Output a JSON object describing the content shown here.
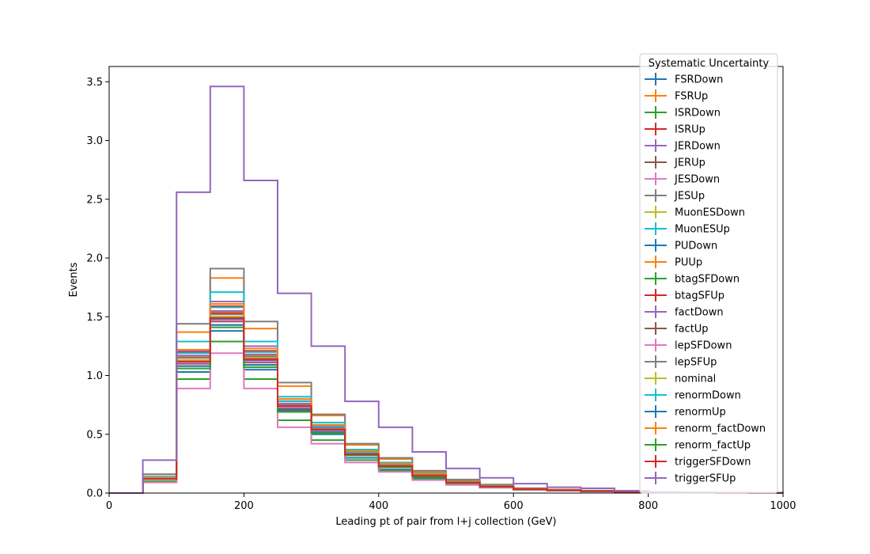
{
  "chart_data": {
    "type": "step-histogram",
    "xlabel": "Leading pt of pair from l+j collection (GeV)",
    "ylabel": "Events",
    "xlim": [
      0,
      1000
    ],
    "ylim": [
      0,
      3.63
    ],
    "xticks": [
      "0",
      "200",
      "400",
      "600",
      "800",
      "1000"
    ],
    "yticks": [
      "0.0",
      "0.5",
      "1.0",
      "1.5",
      "2.0",
      "2.5",
      "3.0",
      "3.5"
    ],
    "grid": false,
    "legend": {
      "title": "Systematic Uncertainty",
      "placement": "top-right"
    },
    "bin_edges": [
      0,
      50,
      100,
      150,
      200,
      250,
      300,
      350,
      400,
      450,
      500,
      550,
      600,
      650,
      700,
      750,
      800,
      850,
      900,
      950,
      1000
    ],
    "series": [
      {
        "name": "FSRDown",
        "color": "#1f77b4",
        "values": [
          0,
          0.12,
          1.03,
          1.38,
          1.05,
          0.7,
          0.5,
          0.3,
          0.2,
          0.13,
          0.08,
          0.05,
          0.03,
          0.02,
          0.015,
          0.01,
          0.006,
          0.004,
          0.003,
          0.002
        ]
      },
      {
        "name": "FSRUp",
        "color": "#ff7f0e",
        "values": [
          0,
          0.16,
          1.37,
          1.83,
          1.4,
          0.91,
          0.66,
          0.41,
          0.29,
          0.18,
          0.11,
          0.07,
          0.04,
          0.03,
          0.02,
          0.013,
          0.008,
          0.005,
          0.004,
          0.003
        ]
      },
      {
        "name": "ISRDown",
        "color": "#2ca02c",
        "values": [
          0,
          0.1,
          0.97,
          1.29,
          0.97,
          0.62,
          0.45,
          0.28,
          0.19,
          0.12,
          0.07,
          0.05,
          0.03,
          0.02,
          0.015,
          0.01,
          0.006,
          0.004,
          0.003,
          0.002
        ]
      },
      {
        "name": "ISRUp",
        "color": "#d62728",
        "values": [
          0,
          0.13,
          1.2,
          1.59,
          1.21,
          0.78,
          0.57,
          0.35,
          0.25,
          0.16,
          0.09,
          0.06,
          0.035,
          0.025,
          0.018,
          0.012,
          0.007,
          0.005,
          0.003,
          0.002
        ]
      },
      {
        "name": "JERDown",
        "color": "#9467bd",
        "values": [
          0,
          0.13,
          1.21,
          1.63,
          1.25,
          0.8,
          0.58,
          0.36,
          0.25,
          0.16,
          0.1,
          0.06,
          0.036,
          0.026,
          0.018,
          0.012,
          0.007,
          0.005,
          0.003,
          0.002
        ]
      },
      {
        "name": "JERUp",
        "color": "#8c564b",
        "values": [
          0,
          0.12,
          1.08,
          1.43,
          1.09,
          0.7,
          0.51,
          0.32,
          0.22,
          0.14,
          0.085,
          0.055,
          0.032,
          0.023,
          0.016,
          0.011,
          0.006,
          0.004,
          0.003,
          0.002
        ]
      },
      {
        "name": "JESDown",
        "color": "#e377c2",
        "values": [
          0,
          0.09,
          0.89,
          1.19,
          0.89,
          0.56,
          0.42,
          0.26,
          0.18,
          0.11,
          0.07,
          0.045,
          0.027,
          0.019,
          0.013,
          0.009,
          0.005,
          0.003,
          0.002,
          0.001
        ]
      },
      {
        "name": "JESUp",
        "color": "#7f7f7f",
        "values": [
          0,
          0.16,
          1.44,
          1.91,
          1.46,
          0.94,
          0.67,
          0.42,
          0.3,
          0.19,
          0.115,
          0.072,
          0.042,
          0.03,
          0.021,
          0.014,
          0.008,
          0.005,
          0.004,
          0.003
        ]
      },
      {
        "name": "MuonESDown",
        "color": "#bcbd22",
        "values": [
          0,
          0.12,
          1.13,
          1.5,
          1.15,
          0.74,
          0.54,
          0.33,
          0.23,
          0.15,
          0.09,
          0.056,
          0.033,
          0.024,
          0.017,
          0.011,
          0.007,
          0.004,
          0.003,
          0.002
        ]
      },
      {
        "name": "MuonESUp",
        "color": "#17becf",
        "values": [
          0,
          0.14,
          1.29,
          1.71,
          1.29,
          0.82,
          0.6,
          0.37,
          0.26,
          0.17,
          0.1,
          0.064,
          0.038,
          0.027,
          0.019,
          0.013,
          0.007,
          0.005,
          0.003,
          0.002
        ]
      },
      {
        "name": "PUDown",
        "color": "#1f77b4",
        "values": [
          0,
          0.12,
          1.11,
          1.48,
          1.13,
          0.73,
          0.53,
          0.33,
          0.23,
          0.15,
          0.09,
          0.056,
          0.033,
          0.024,
          0.017,
          0.011,
          0.007,
          0.004,
          0.003,
          0.002
        ]
      },
      {
        "name": "PUUp",
        "color": "#ff7f0e",
        "values": [
          0,
          0.13,
          1.16,
          1.54,
          1.17,
          0.76,
          0.55,
          0.34,
          0.24,
          0.155,
          0.093,
          0.058,
          0.034,
          0.025,
          0.017,
          0.011,
          0.007,
          0.004,
          0.003,
          0.002
        ]
      },
      {
        "name": "btagSFDown",
        "color": "#2ca02c",
        "values": [
          0,
          0.12,
          1.12,
          1.49,
          1.14,
          0.74,
          0.54,
          0.33,
          0.23,
          0.15,
          0.09,
          0.056,
          0.033,
          0.024,
          0.017,
          0.011,
          0.007,
          0.004,
          0.003,
          0.002
        ]
      },
      {
        "name": "btagSFUp",
        "color": "#d62728",
        "values": [
          0,
          0.13,
          1.15,
          1.53,
          1.16,
          0.75,
          0.55,
          0.34,
          0.24,
          0.155,
          0.092,
          0.058,
          0.034,
          0.025,
          0.017,
          0.011,
          0.007,
          0.004,
          0.003,
          0.002
        ]
      },
      {
        "name": "factDown",
        "color": "#9467bd",
        "values": [
          0,
          0.13,
          1.17,
          1.55,
          1.18,
          0.76,
          0.56,
          0.35,
          0.24,
          0.157,
          0.094,
          0.059,
          0.035,
          0.025,
          0.018,
          0.012,
          0.007,
          0.005,
          0.003,
          0.002
        ]
      },
      {
        "name": "factUp",
        "color": "#8c564b",
        "values": [
          0,
          0.12,
          1.1,
          1.46,
          1.11,
          0.72,
          0.53,
          0.33,
          0.23,
          0.148,
          0.089,
          0.055,
          0.033,
          0.024,
          0.016,
          0.011,
          0.006,
          0.004,
          0.003,
          0.002
        ]
      },
      {
        "name": "lepSFDown",
        "color": "#e377c2",
        "values": [
          0,
          0.12,
          1.11,
          1.47,
          1.12,
          0.73,
          0.53,
          0.33,
          0.23,
          0.149,
          0.089,
          0.056,
          0.033,
          0.024,
          0.017,
          0.011,
          0.007,
          0.004,
          0.003,
          0.002
        ]
      },
      {
        "name": "lepSFUp",
        "color": "#7f7f7f",
        "values": [
          0,
          0.13,
          1.15,
          1.52,
          1.16,
          0.75,
          0.55,
          0.34,
          0.24,
          0.154,
          0.092,
          0.058,
          0.034,
          0.025,
          0.017,
          0.011,
          0.007,
          0.004,
          0.003,
          0.002
        ]
      },
      {
        "name": "nominal",
        "color": "#bcbd22",
        "values": [
          0,
          0.12,
          1.13,
          1.5,
          1.15,
          0.74,
          0.54,
          0.33,
          0.23,
          0.151,
          0.09,
          0.057,
          0.033,
          0.024,
          0.017,
          0.011,
          0.007,
          0.004,
          0.003,
          0.002
        ]
      },
      {
        "name": "renormDown",
        "color": "#17becf",
        "values": [
          0,
          0.13,
          1.19,
          1.58,
          1.2,
          0.78,
          0.57,
          0.35,
          0.25,
          0.16,
          0.095,
          0.06,
          0.035,
          0.026,
          0.018,
          0.012,
          0.007,
          0.005,
          0.003,
          0.002
        ]
      },
      {
        "name": "renormUp",
        "color": "#1f77b4",
        "values": [
          0,
          0.12,
          1.08,
          1.43,
          1.09,
          0.71,
          0.52,
          0.32,
          0.22,
          0.145,
          0.087,
          0.054,
          0.032,
          0.023,
          0.016,
          0.011,
          0.006,
          0.004,
          0.003,
          0.002
        ]
      },
      {
        "name": "renorm_factDown",
        "color": "#ff7f0e",
        "values": [
          0,
          0.13,
          1.22,
          1.61,
          1.23,
          0.8,
          0.58,
          0.36,
          0.25,
          0.163,
          0.097,
          0.061,
          0.036,
          0.026,
          0.018,
          0.012,
          0.007,
          0.005,
          0.003,
          0.002
        ]
      },
      {
        "name": "renorm_factUp",
        "color": "#2ca02c",
        "values": [
          0,
          0.12,
          1.06,
          1.41,
          1.07,
          0.69,
          0.51,
          0.32,
          0.22,
          0.142,
          0.085,
          0.053,
          0.031,
          0.023,
          0.016,
          0.01,
          0.006,
          0.004,
          0.003,
          0.002
        ]
      },
      {
        "name": "triggerSFDown",
        "color": "#d62728",
        "values": [
          0,
          0.12,
          1.12,
          1.49,
          1.14,
          0.74,
          0.54,
          0.33,
          0.23,
          0.15,
          0.09,
          0.056,
          0.033,
          0.024,
          0.017,
          0.011,
          0.007,
          0.004,
          0.003,
          0.002
        ]
      },
      {
        "name": "triggerSFUp",
        "color": "#9467bd",
        "values": [
          0,
          0.28,
          2.56,
          3.46,
          2.66,
          1.7,
          1.25,
          0.78,
          0.56,
          0.35,
          0.21,
          0.13,
          0.08,
          0.05,
          0.04,
          0.02,
          0.01,
          0.005,
          0.003,
          0.002
        ]
      }
    ]
  }
}
